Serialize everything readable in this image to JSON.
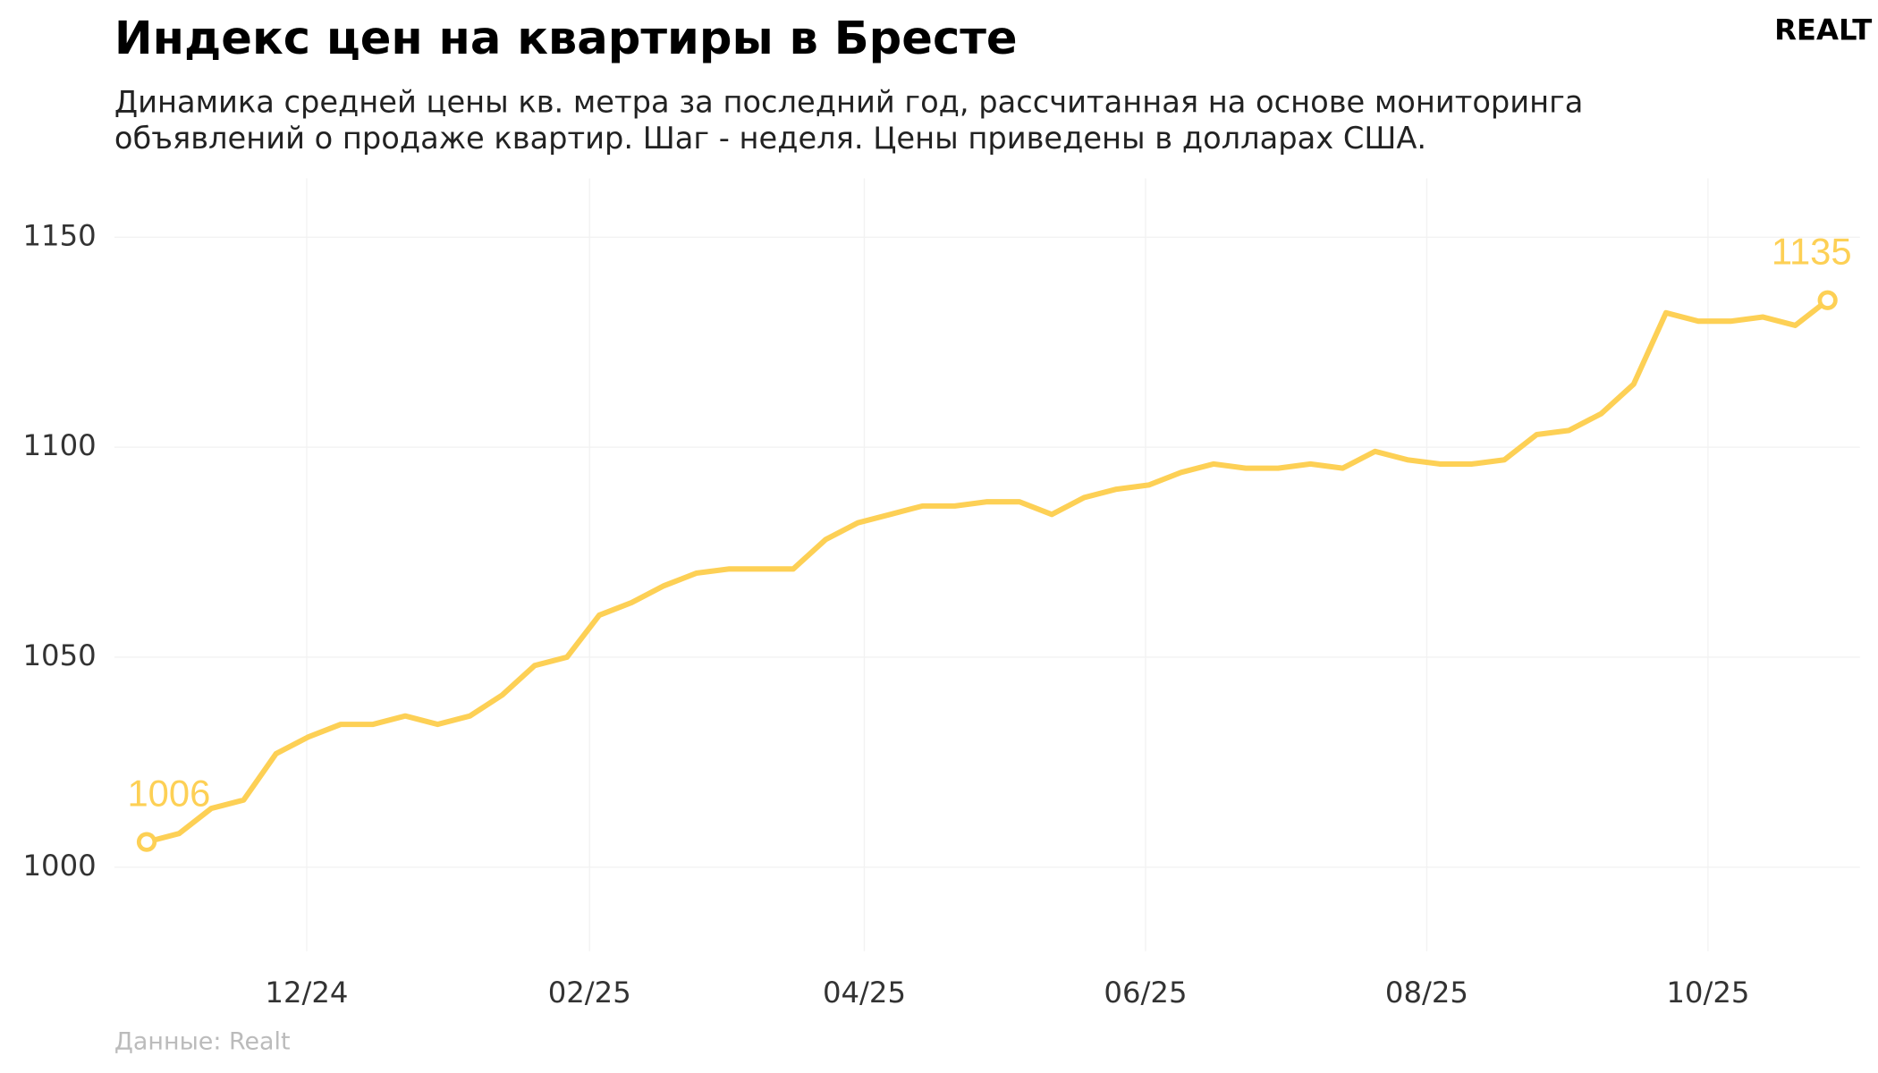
{
  "chart_data": {
    "type": "line",
    "title": "Индекс цен на квартиры в Бресте",
    "subtitle": [
      "Динамика средней цены кв. метра за последний год, рассчитанная на основе мониторинга",
      "объявлений о продаже квартир. Шаг - неделя. Цены приведены в долларах США."
    ],
    "source": "Данные: Realt",
    "logo": "REALT",
    "color": "#fdd055",
    "values": [
      1006,
      1008,
      1014,
      1016,
      1027,
      1031,
      1034,
      1034,
      1036,
      1034,
      1036,
      1041,
      1048,
      1050,
      1060,
      1063,
      1067,
      1070,
      1071,
      1071,
      1071,
      1078,
      1082,
      1084,
      1086,
      1086,
      1087,
      1087,
      1084,
      1088,
      1090,
      1091,
      1094,
      1096,
      1095,
      1095,
      1096,
      1095,
      1099,
      1097,
      1096,
      1096,
      1097,
      1103,
      1104,
      1108,
      1115,
      1132,
      1130,
      1130,
      1131,
      1129,
      1135
    ],
    "xlim": [
      -1,
      53
    ],
    "xticks": [
      {
        "value": 4.95,
        "label": "12/24"
      },
      {
        "value": 13.7,
        "label": "02/25"
      },
      {
        "value": 22.2,
        "label": "04/25"
      },
      {
        "value": 30.9,
        "label": "06/25"
      },
      {
        "value": 39.6,
        "label": "08/25"
      },
      {
        "value": 48.3,
        "label": "10/25"
      }
    ],
    "ylim": [
      980,
      1164
    ],
    "yticks": [
      1000,
      1050,
      1100,
      1150
    ],
    "grid": true
  }
}
